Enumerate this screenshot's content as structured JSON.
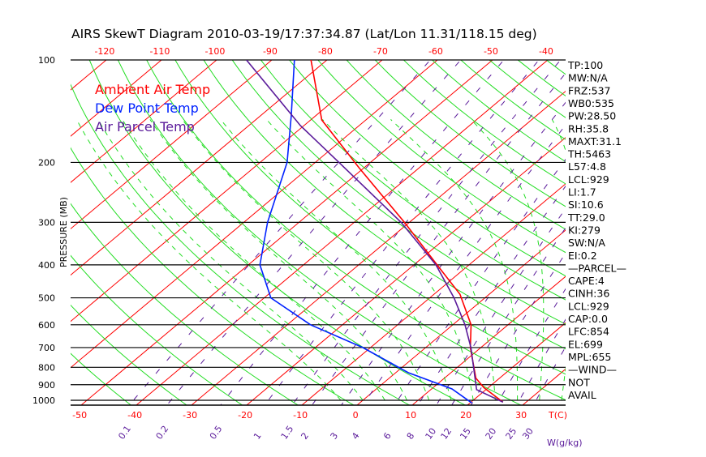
{
  "colors": {
    "ambient": "#ff0000",
    "dewpoint": "#0022ff",
    "parcel": "#5a1a9a",
    "dry_adiabat": "#22dd22",
    "moist_adiabat": "#22dd22",
    "isotherm": "#ff0000",
    "mixing_ratio": "#5a1a9a",
    "isobar": "#000000"
  },
  "chart_data": {
    "type": "skewt",
    "title": "AIRS SkewT Diagram 2010-03-19/17:37:34.87 (Lat/Lon 11.31/118.15 deg)",
    "ylabel": "PRESSURE (MB)",
    "xlabel": "T(C)",
    "mixing_ratio_label": "W(g/kg)",
    "pressure_range": [
      100,
      1033
    ],
    "pressure_ticks": [
      100,
      200,
      300,
      400,
      500,
      600,
      700,
      800,
      900,
      1000
    ],
    "top_temp_ticks": [
      -120,
      -110,
      -100,
      -90,
      -80,
      -70,
      -60,
      -50,
      -40
    ],
    "bottom_temp_ticks": [
      -50,
      -40,
      -30,
      -20,
      -10,
      0,
      10,
      20,
      30
    ],
    "mixing_ratio_ticks": [
      "0.1",
      "0.2",
      "0.5",
      "1",
      "1.5",
      "2",
      "3",
      "4",
      "6",
      "8",
      "10",
      "12",
      "15",
      "20",
      "25",
      "30"
    ],
    "legend": [
      "Ambient Air Temp",
      "Dew Point Temp",
      "Air Parcel Temp"
    ],
    "legend_position": "top-left",
    "series": [
      {
        "name": "Ambient Air Temp",
        "pressure": [
          100,
          150,
          207,
          300,
          400,
          488,
          600,
          700,
          861,
          918,
          1013
        ],
        "temperature": [
          -82.9,
          -68.0,
          -51.0,
          -30.9,
          -15.8,
          -5.3,
          3.3,
          8.1,
          15.7,
          19.2,
          25.8
        ]
      },
      {
        "name": "Dew Point Temp",
        "pressure": [
          100,
          146,
          200,
          300,
          400,
          500,
          600,
          700,
          830,
          926,
          1018
        ],
        "temperature": [
          -85.9,
          -74.4,
          -65.1,
          -55.7,
          -47.9,
          -38.8,
          -25.8,
          -11.4,
          2.3,
          13.7,
          20.3
        ]
      },
      {
        "name": "Air Parcel Temp",
        "pressure": [
          100,
          156,
          200,
          300,
          400,
          500,
          600,
          700,
          930,
          1013
        ],
        "temperature": [
          -94.6,
          -70.6,
          -55.7,
          -31.5,
          -16.0,
          -5.6,
          2.2,
          8.2,
          18.3,
          25.8
        ]
      }
    ]
  },
  "stats": [
    "TP:100",
    "MW:N/A",
    "FRZ:537",
    "WB0:535",
    "PW:28.50",
    "RH:35.8",
    "MAXT:31.1",
    "TH:5463",
    "L57:4.8",
    "LCL:929",
    "LI:1.7",
    "SI:10.6",
    "TT:29.0",
    "KI:279",
    "SW:N/A",
    "EI:0.2",
    "—PARCEL—",
    "CAPE:4",
    "CINH:36",
    "LCL:929",
    "CAP:0.0",
    "LFC:854",
    "EL:699",
    "MPL:655",
    "—WIND—",
    "NOT",
    "AVAIL"
  ]
}
